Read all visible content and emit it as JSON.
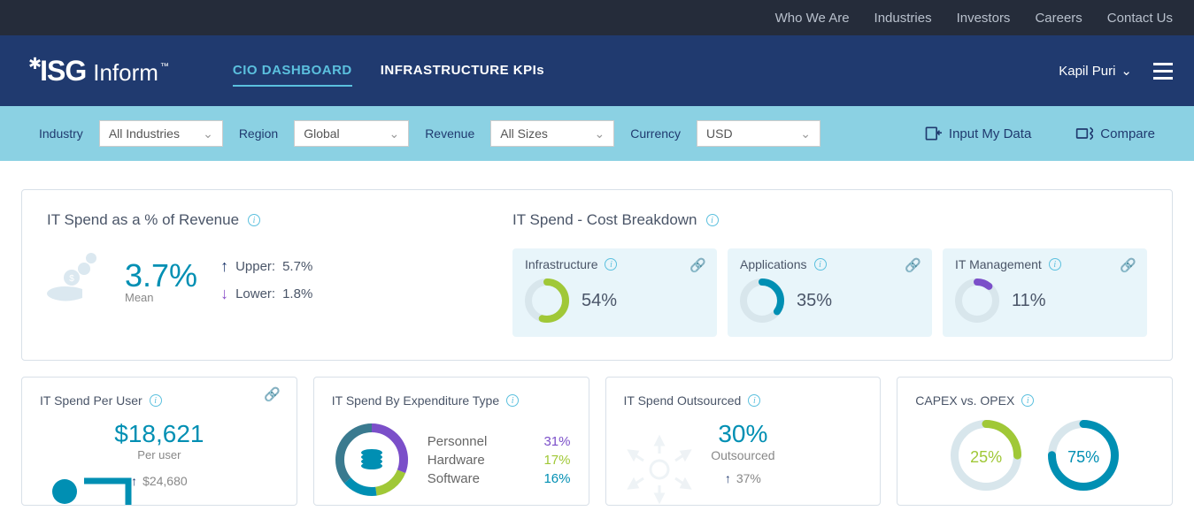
{
  "topnav": {
    "who": "Who We Are",
    "industries": "Industries",
    "investors": "Investors",
    "careers": "Careers",
    "contact": "Contact Us"
  },
  "logo": {
    "isg": "ISG",
    "inform": "Inform",
    "tm": "™"
  },
  "tabs": {
    "cio": "CIO DASHBOARD",
    "infra": "INFRASTRUCTURE KPIs"
  },
  "user": {
    "name": "Kapil Puri"
  },
  "filters": {
    "industry_label": "Industry",
    "industry_value": "All Industries",
    "region_label": "Region",
    "region_value": "Global",
    "revenue_label": "Revenue",
    "revenue_value": "All Sizes",
    "currency_label": "Currency",
    "currency_value": "USD",
    "input_data": "Input My Data",
    "compare": "Compare"
  },
  "spend_rev": {
    "title": "IT Spend as a % of Revenue",
    "value": "3.7%",
    "mean_label": "Mean",
    "upper_label": "Upper:",
    "upper_value": "5.7%",
    "lower_label": "Lower:",
    "lower_value": "1.8%"
  },
  "breakdown": {
    "title": "IT Spend - Cost Breakdown",
    "cards": [
      {
        "label": "Infrastructure",
        "value": "54%",
        "pct": 54,
        "color": "#a0c837"
      },
      {
        "label": "Applications",
        "value": "35%",
        "pct": 35,
        "color": "#008fb3"
      },
      {
        "label": "IT Management",
        "value": "11%",
        "pct": 11,
        "color": "#7b4fc9"
      }
    ]
  },
  "per_user": {
    "title": "IT Spend Per User",
    "value": "$18,621",
    "label": "Per user",
    "next": "$24,680"
  },
  "expenditure": {
    "title": "IT Spend By Expenditure Type",
    "items": [
      {
        "label": "Personnel",
        "value": "31%",
        "color": "#7b4fc9"
      },
      {
        "label": "Hardware",
        "value": "17%",
        "color": "#a0c837"
      },
      {
        "label": "Software",
        "value": "16%",
        "color": "#008fb3"
      }
    ]
  },
  "outsourced": {
    "title": "IT Spend Outsourced",
    "value": "30%",
    "label": "Outsourced",
    "next": "37%"
  },
  "capex": {
    "title": "CAPEX vs. OPEX",
    "left": {
      "value": "25%",
      "pct": 25,
      "color": "#a0c837"
    },
    "right": {
      "value": "75%",
      "pct": 75,
      "color": "#008fb3"
    }
  },
  "colors": {
    "topbar_bg": "#252c3a",
    "header_bg": "#203a6f",
    "filter_bg": "#8bd1e3",
    "active_tab": "#5bc0de",
    "teal": "#008fb3"
  }
}
